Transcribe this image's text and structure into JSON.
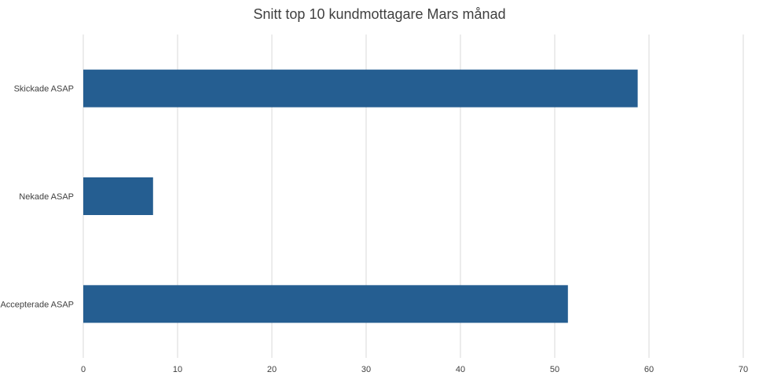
{
  "chart_data": {
    "type": "bar",
    "orientation": "horizontal",
    "title": "Snitt top 10 kundmottagare Mars månad",
    "categories": [
      "Skickade ASAP",
      "Nekade ASAP",
      "Accepterade ASAP"
    ],
    "values": [
      58.8,
      7.4,
      51.4
    ],
    "xlim": [
      0,
      70
    ],
    "xticks": [
      0,
      10,
      20,
      30,
      40,
      50,
      60,
      70
    ],
    "xlabel": "",
    "ylabel": "",
    "grid": "vertical",
    "legend": "none",
    "bar_color": "#255e91"
  }
}
